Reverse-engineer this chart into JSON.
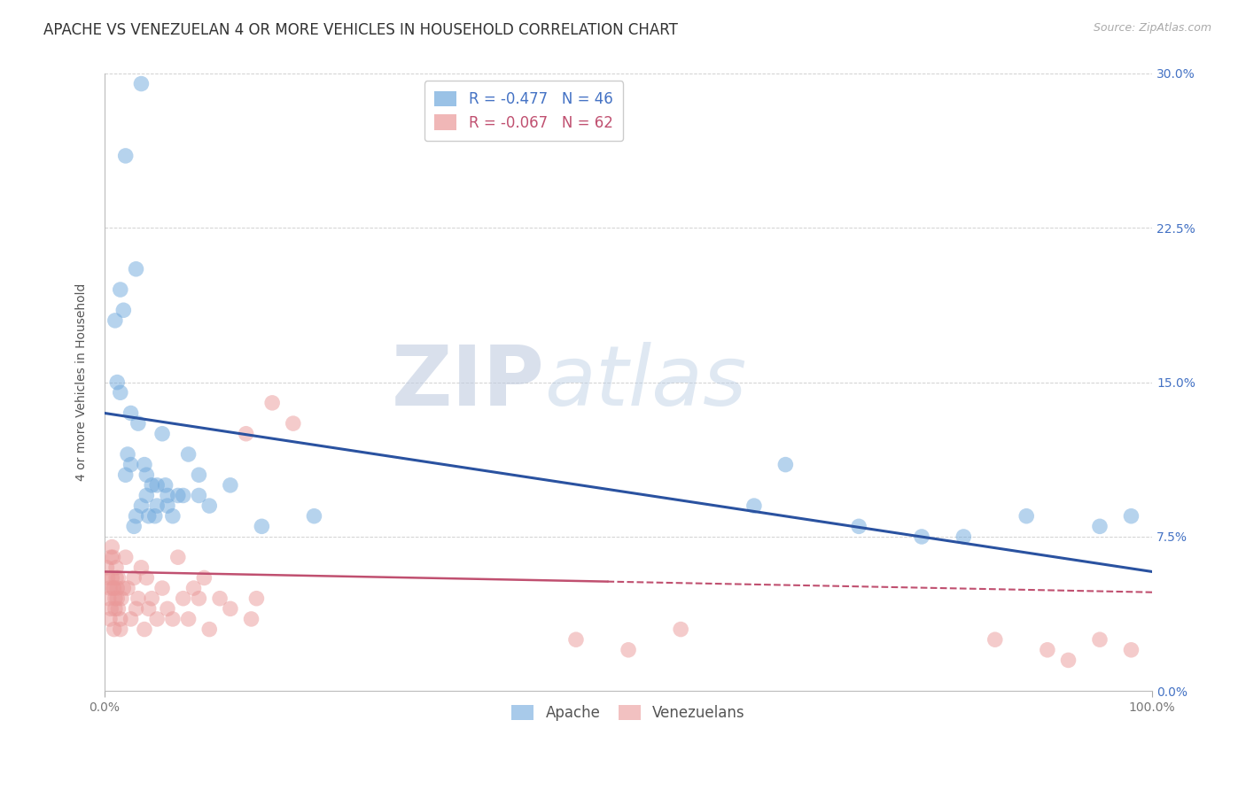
{
  "title": "APACHE VS VENEZUELAN 4 OR MORE VEHICLES IN HOUSEHOLD CORRELATION CHART",
  "source": "Source: ZipAtlas.com",
  "ylabel": "4 or more Vehicles in Household",
  "xlabel": "",
  "xlim": [
    0,
    100
  ],
  "ylim": [
    0,
    30
  ],
  "xticks": [
    0,
    100
  ],
  "xtick_labels": [
    "0.0%",
    "100.0%"
  ],
  "yticks": [
    0,
    7.5,
    15.0,
    22.5,
    30.0
  ],
  "ytick_labels": [
    "0.0%",
    "7.5%",
    "15.0%",
    "22.5%",
    "30.0%"
  ],
  "apache_color": "#6fa8dc",
  "venezuelan_color": "#ea9999",
  "apache_line_color": "#2a52a0",
  "venezuelan_line_color": "#c05070",
  "apache_R": -0.477,
  "apache_N": 46,
  "venezuelan_R": -0.067,
  "venezuelan_N": 62,
  "legend_label_1": "Apache",
  "legend_label_2": "Venezuelans",
  "watermark_zip": "ZIP",
  "watermark_atlas": "atlas",
  "background_color": "#ffffff",
  "title_fontsize": 12,
  "axis_label_fontsize": 10,
  "tick_fontsize": 10,
  "apache_x": [
    2.5,
    2.0,
    3.5,
    3.0,
    4.5,
    3.8,
    4.2,
    5.0,
    1.5,
    2.2,
    3.2,
    4.0,
    1.8,
    5.5,
    1.2,
    6.0,
    2.8,
    7.5,
    9.0,
    3.5,
    4.8,
    6.5,
    5.8,
    1.0,
    1.5,
    2.0,
    2.5,
    3.0,
    4.0,
    5.0,
    6.0,
    7.0,
    8.0,
    9.0,
    10.0,
    12.0,
    15.0,
    20.0,
    62.0,
    65.0,
    72.0,
    78.0,
    82.0,
    88.0,
    95.0,
    98.0
  ],
  "apache_y": [
    13.5,
    26.0,
    29.5,
    20.5,
    10.0,
    11.0,
    8.5,
    9.0,
    14.5,
    11.5,
    13.0,
    10.5,
    18.5,
    12.5,
    15.0,
    9.5,
    8.0,
    9.5,
    10.5,
    9.0,
    8.5,
    8.5,
    10.0,
    18.0,
    19.5,
    10.5,
    11.0,
    8.5,
    9.5,
    10.0,
    9.0,
    9.5,
    11.5,
    9.5,
    9.0,
    10.0,
    8.0,
    8.5,
    9.0,
    11.0,
    8.0,
    7.5,
    7.5,
    8.5,
    8.0,
    8.5
  ],
  "venezuelan_x": [
    0.2,
    0.3,
    0.4,
    0.5,
    0.5,
    0.6,
    0.6,
    0.7,
    0.7,
    0.8,
    0.8,
    0.9,
    0.9,
    1.0,
    1.0,
    1.1,
    1.1,
    1.2,
    1.2,
    1.3,
    1.3,
    1.5,
    1.5,
    1.6,
    1.8,
    2.0,
    2.2,
    2.5,
    2.8,
    3.0,
    3.2,
    3.5,
    3.8,
    4.0,
    4.2,
    4.5,
    5.0,
    5.5,
    6.0,
    6.5,
    7.0,
    7.5,
    8.0,
    8.5,
    9.0,
    9.5,
    10.0,
    11.0,
    12.0,
    14.0,
    16.0,
    18.0,
    13.5,
    14.5,
    45.0,
    50.0,
    55.0,
    85.0,
    90.0,
    92.0,
    95.0,
    98.0
  ],
  "venezuelan_y": [
    6.0,
    5.5,
    4.5,
    5.0,
    3.5,
    6.5,
    4.0,
    5.5,
    7.0,
    6.5,
    5.0,
    3.0,
    5.0,
    4.0,
    4.5,
    6.0,
    5.5,
    5.0,
    4.5,
    5.5,
    4.0,
    3.5,
    3.0,
    4.5,
    5.0,
    6.5,
    5.0,
    3.5,
    5.5,
    4.0,
    4.5,
    6.0,
    3.0,
    5.5,
    4.0,
    4.5,
    3.5,
    5.0,
    4.0,
    3.5,
    6.5,
    4.5,
    3.5,
    5.0,
    4.5,
    5.5,
    3.0,
    4.5,
    4.0,
    3.5,
    14.0,
    13.0,
    12.5,
    4.5,
    2.5,
    2.0,
    3.0,
    2.5,
    2.0,
    1.5,
    2.5,
    2.0
  ],
  "apache_line_x0": 0,
  "apache_line_x1": 100,
  "apache_line_y0": 13.5,
  "apache_line_y1": 5.8,
  "venezuelan_line_solid_x0": 0,
  "venezuelan_line_solid_x1": 48,
  "venezuelan_line_dashed_x0": 48,
  "venezuelan_line_dashed_x1": 100,
  "venezuelan_line_y0": 5.8,
  "venezuelan_line_y1": 4.8
}
